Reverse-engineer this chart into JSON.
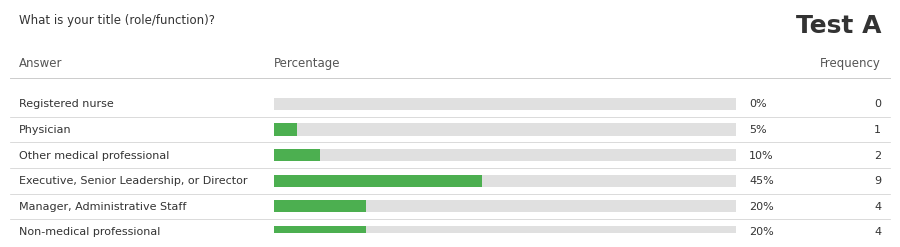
{
  "title": "Test A",
  "question": "What is your title (role/function)?",
  "col_answer": "Answer",
  "col_percentage": "Percentage",
  "col_frequency": "Frequency",
  "categories": [
    "Registered nurse",
    "Physician",
    "Other medical professional",
    "Executive, Senior Leadership, or Director",
    "Manager, Administrative Staff",
    "Non-medical professional"
  ],
  "percentages": [
    0,
    5,
    10,
    45,
    20,
    20
  ],
  "frequencies": [
    0,
    1,
    2,
    9,
    4,
    4
  ],
  "bar_color": "#4caf50",
  "bar_bg_color": "#e0e0e0",
  "background_color": "#ffffff",
  "text_color": "#333333",
  "header_color": "#555555",
  "divider_color": "#cccccc",
  "title_fontsize": 18,
  "question_fontsize": 8.5,
  "label_fontsize": 8,
  "header_fontsize": 8.5,
  "bar_max": 100,
  "fig_width": 8.8,
  "fig_height": 2.23
}
